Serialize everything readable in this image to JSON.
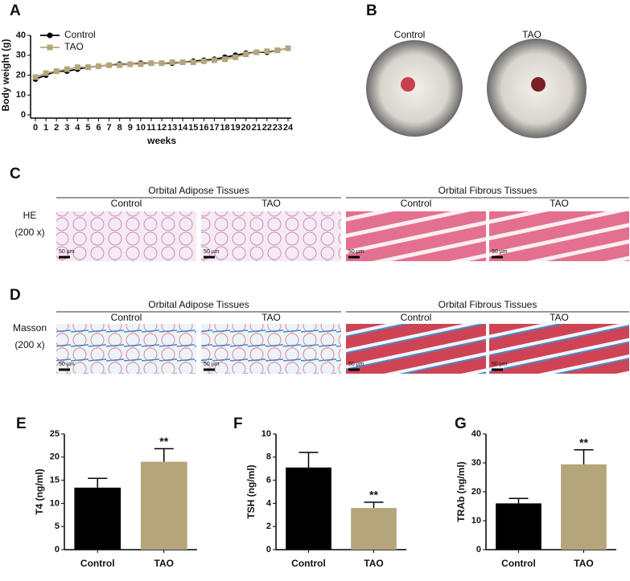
{
  "panel_labels": [
    "A",
    "B",
    "C",
    "D",
    "E",
    "F",
    "G"
  ],
  "photos": [
    "Control",
    "TAO"
  ],
  "histology": {
    "groups": [
      "Orbital Adipose Tissues",
      "Orbital Fibrous Tissues"
    ],
    "conditions": [
      "Control",
      "TAO"
    ],
    "rows": [
      {
        "stain": "HE",
        "magnification": "(200 x)"
      },
      {
        "stain": "Masson",
        "magnification": "(200 x)"
      }
    ],
    "scale_bar": "50 µm"
  },
  "chart_data": [
    {
      "type": "line",
      "x_label": "weeks",
      "y_label": "Body weight (g)",
      "x": [
        0,
        1,
        2,
        3,
        4,
        5,
        6,
        7,
        8,
        9,
        10,
        11,
        12,
        13,
        14,
        15,
        16,
        17,
        18,
        19,
        20,
        21,
        22,
        23,
        24
      ],
      "series": [
        {
          "name": "Control",
          "color": "#000000",
          "marker": "circle",
          "values": [
            18,
            20,
            22,
            22,
            23,
            24,
            24.5,
            25,
            25.5,
            25.5,
            26,
            26,
            26,
            26,
            26.5,
            27,
            27.5,
            28,
            29,
            30,
            31,
            31.5,
            31.5,
            32.5,
            33.5
          ]
        },
        {
          "name": "TAO",
          "color": "#b5a57a",
          "marker": "square",
          "values": [
            19,
            21,
            22,
            23,
            24,
            24,
            24.5,
            25,
            25,
            25.5,
            25.5,
            26,
            26,
            26.5,
            26.5,
            26.5,
            27,
            27.5,
            28,
            29,
            30.5,
            31.5,
            32,
            32.5,
            33.5
          ]
        }
      ],
      "xlim": [
        0,
        24
      ],
      "xticks": [
        0,
        1,
        2,
        3,
        4,
        5,
        6,
        7,
        8,
        9,
        10,
        11,
        12,
        13,
        14,
        15,
        16,
        17,
        18,
        19,
        20,
        21,
        22,
        23,
        24
      ],
      "ylim": [
        0,
        40
      ],
      "yticks": [
        0,
        10,
        20,
        30,
        40
      ],
      "legend": "upper left"
    },
    {
      "type": "bar",
      "y_label": "T4 (ng/ml)",
      "categories": [
        "Control",
        "TAO"
      ],
      "values": [
        13.4,
        19
      ],
      "errors": [
        2,
        2.8
      ],
      "colors": [
        "#000000",
        "#b5a57a"
      ],
      "significance": [
        null,
        "**"
      ],
      "ylim": [
        0,
        25
      ],
      "yticks": [
        0,
        5,
        10,
        15,
        20,
        25
      ]
    },
    {
      "type": "bar",
      "y_label": "TSH (ng/ml)",
      "categories": [
        "Control",
        "TAO"
      ],
      "values": [
        7.1,
        3.6
      ],
      "errors": [
        1.3,
        0.5
      ],
      "colors": [
        "#000000",
        "#b5a57a"
      ],
      "significance": [
        null,
        "**"
      ],
      "ylim": [
        0,
        10
      ],
      "yticks": [
        0,
        2,
        4,
        6,
        8,
        10
      ]
    },
    {
      "type": "bar",
      "y_label": "TRAb (ng/ml)",
      "categories": [
        "Control",
        "TAO"
      ],
      "values": [
        16,
        29.5
      ],
      "errors": [
        1.7,
        5
      ],
      "colors": [
        "#000000",
        "#b5a57a"
      ],
      "significance": [
        null,
        "**"
      ],
      "ylim": [
        0,
        40
      ],
      "yticks": [
        0,
        10,
        20,
        30,
        40
      ]
    }
  ]
}
